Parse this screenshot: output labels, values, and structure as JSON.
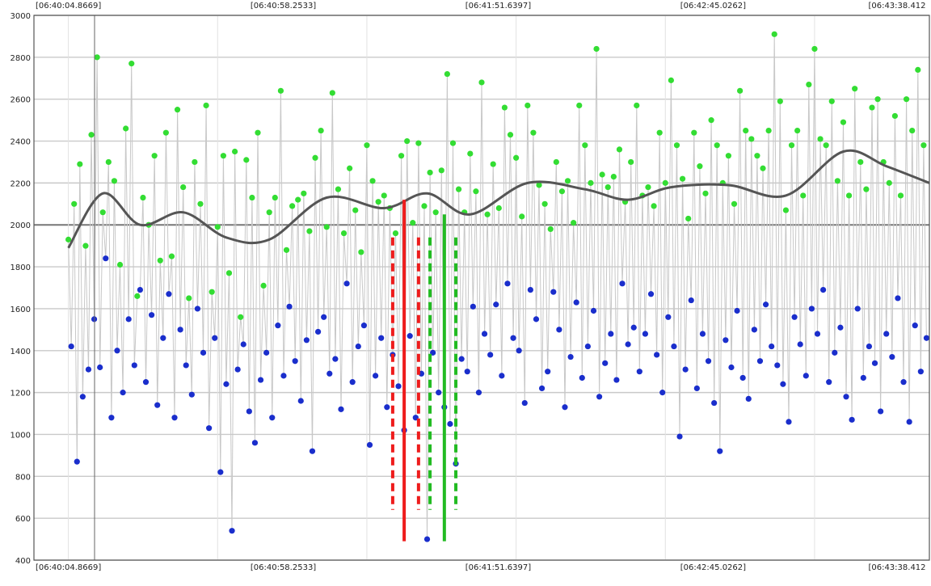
{
  "chart_data": {
    "type": "scatter",
    "ylim": [
      400,
      3000
    ],
    "yticks": [
      400,
      600,
      800,
      1000,
      1200,
      1400,
      1600,
      1800,
      2000,
      2200,
      2400,
      2600,
      2800,
      3000
    ],
    "time_labels": [
      "[06:40:04.8669]",
      "[06:40:58.2533]",
      "[06:41:51.6397]",
      "[06:42:45.0262]",
      "[06:43:38.412"
    ],
    "time_labels_bottom": [
      "[06:40:04.8669]",
      "[06:40:58.2533]",
      "[06:41:51.6397]",
      "[06:42:45.0262]",
      "[06:43:38.412"
    ],
    "xlim": [
      -12,
      300
    ],
    "grid": true,
    "reference_line_y": 2000,
    "series": [],
    "trend_line": {
      "x": [
        0,
        12,
        25,
        40,
        55,
        70,
        90,
        110,
        125,
        140,
        160,
        180,
        195,
        210,
        230,
        250,
        270,
        285,
        300
      ],
      "y": [
        1890,
        2150,
        2000,
        2060,
        1940,
        1930,
        2130,
        2080,
        2150,
        2050,
        2200,
        2170,
        2120,
        2180,
        2190,
        2140,
        2350,
        2280,
        2200
      ]
    },
    "markers": [
      {
        "x": 117,
        "color": "#ee1c1c",
        "style": "solid",
        "y": [
          490,
          2120
        ]
      },
      {
        "x": 113,
        "color": "#ee1c1c",
        "style": "dashed",
        "y": [
          640,
          1940
        ]
      },
      {
        "x": 122,
        "color": "#ee1c1c",
        "style": "dashed",
        "y": [
          640,
          1940
        ]
      },
      {
        "x": 126,
        "color": "#22bb22",
        "style": "dashed",
        "y": [
          640,
          1940
        ]
      },
      {
        "x": 131,
        "color": "#22bb22",
        "style": "solid",
        "y": [
          490,
          2050
        ]
      },
      {
        "x": 135,
        "color": "#22bb22",
        "style": "dashed",
        "y": [
          640,
          1940
        ]
      }
    ],
    "series_colors": {
      "green": "#33dd33",
      "blue": "#1a2ecc",
      "connector": "#c8c8c8",
      "trend": "#555555"
    },
    "green_series": {
      "x": [
        0,
        2,
        4,
        6,
        8,
        10,
        12,
        14,
        16,
        18,
        20,
        22,
        24,
        26,
        28,
        30,
        32,
        34,
        36,
        38,
        40,
        42,
        44,
        46,
        48,
        50,
        52,
        54,
        56,
        58,
        60,
        62,
        64,
        66,
        68,
        70,
        72,
        74,
        76,
        78,
        80,
        82,
        84,
        86,
        88,
        90,
        92,
        94,
        96,
        98,
        100,
        102,
        104,
        106,
        108,
        110,
        112,
        114,
        116,
        118,
        120,
        122,
        124,
        126,
        128,
        130,
        132,
        134,
        136,
        138,
        140,
        142,
        144,
        146,
        148,
        150,
        152,
        154,
        156,
        158,
        160,
        162,
        164,
        166,
        168,
        170,
        172,
        174,
        176,
        178,
        180,
        182,
        184,
        186,
        188,
        190,
        192,
        194,
        196,
        198,
        200,
        202,
        204,
        206,
        208,
        210,
        212,
        214,
        216,
        218,
        220,
        222,
        224,
        226,
        228,
        230,
        232,
        234,
        236,
        238,
        240,
        242,
        244,
        246,
        248,
        250,
        252,
        254,
        256,
        258,
        260,
        262,
        264,
        266,
        268,
        270,
        272,
        274,
        276,
        278,
        280,
        282,
        284,
        286,
        288,
        290,
        292,
        294,
        296,
        298
      ],
      "y": [
        1930,
        2100,
        2290,
        1900,
        2430,
        2800,
        2060,
        2300,
        2210,
        1810,
        2460,
        2770,
        1660,
        2130,
        2000,
        2330,
        1830,
        2440,
        1850,
        2550,
        2180,
        1650,
        2300,
        2100,
        2570,
        1680,
        1990,
        2330,
        1770,
        2350,
        1560,
        2310,
        2130,
        2440,
        1710,
        2060,
        2130,
        2640,
        1880,
        2090,
        2120,
        2150,
        1970,
        2320,
        2450,
        1990,
        2630,
        2170,
        1960,
        2270,
        2070,
        1870,
        2380,
        2210,
        2110,
        2140,
        2080,
        1960,
        2330,
        2400,
        2010,
        2390,
        2090,
        2250,
        2060,
        2260,
        2720,
        2390,
        2170,
        2060,
        2340,
        2160,
        2680,
        2050,
        2290,
        2080,
        2560,
        2430,
        2320,
        2040,
        2570,
        2440,
        2190,
        2100,
        1980,
        2300,
        2160,
        2210,
        2010,
        2570,
        2380,
        2200,
        2840,
        2240,
        2180,
        2230,
        2360,
        2110,
        2300,
        2570,
        2140,
        2180,
        2090,
        2440,
        2200,
        2690,
        2380,
        2220,
        2030,
        2440,
        2280,
        2150,
        2500,
        2380,
        2200,
        2330,
        2100,
        2640,
        2450,
        2410,
        2330,
        2270,
        2450,
        2910,
        2590,
        2070,
        2380,
        2450,
        2140,
        2670,
        2840,
        2410,
        2380,
        2590,
        2210,
        2490,
        2140,
        2650,
        2300,
        2170,
        2560,
        2600,
        2300,
        2200,
        2520,
        2140,
        2600,
        2450,
        2740,
        2380
      ]
    },
    "blue_series": {
      "x": [
        0,
        2,
        4,
        6,
        8,
        10,
        12,
        14,
        16,
        18,
        20,
        22,
        24,
        26,
        28,
        30,
        32,
        34,
        36,
        38,
        40,
        42,
        44,
        46,
        48,
        50,
        52,
        54,
        56,
        58,
        60,
        62,
        64,
        66,
        68,
        70,
        72,
        74,
        76,
        78,
        80,
        82,
        84,
        86,
        88,
        90,
        92,
        94,
        96,
        98,
        100,
        102,
        104,
        106,
        108,
        110,
        112,
        114,
        116,
        118,
        120,
        122,
        124,
        126,
        128,
        130,
        132,
        134,
        136,
        138,
        140,
        142,
        144,
        146,
        148,
        150,
        152,
        154,
        156,
        158,
        160,
        162,
        164,
        166,
        168,
        170,
        172,
        174,
        176,
        178,
        180,
        182,
        184,
        186,
        188,
        190,
        192,
        194,
        196,
        198,
        200,
        202,
        204,
        206,
        208,
        210,
        212,
        214,
        216,
        218,
        220,
        222,
        224,
        226,
        228,
        230,
        232,
        234,
        236,
        238,
        240,
        242,
        244,
        246,
        248,
        250,
        252,
        254,
        256,
        258,
        260,
        262,
        264,
        266,
        268,
        270,
        272,
        274,
        276,
        278,
        280,
        282,
        284,
        286,
        288,
        290,
        292,
        294,
        296,
        298
      ],
      "y": [
        1420,
        870,
        1180,
        1310,
        1550,
        1320,
        1840,
        1080,
        1400,
        1200,
        1550,
        1330,
        1690,
        1250,
        1570,
        1140,
        1460,
        1670,
        1080,
        1500,
        1330,
        1190,
        1600,
        1390,
        1030,
        1460,
        820,
        1240,
        540,
        1310,
        1430,
        1110,
        960,
        1260,
        1390,
        1080,
        1520,
        1280,
        1610,
        1350,
        1160,
        1450,
        920,
        1490,
        1560,
        1290,
        1360,
        1120,
        1720,
        1250,
        1420,
        1520,
        950,
        1280,
        1460,
        1130,
        1380,
        1230,
        1020,
        1470,
        1080,
        1290,
        500,
        1390,
        1200,
        1130,
        1050,
        860,
        1360,
        1300,
        1610,
        1200,
        1480,
        1380,
        1620,
        1280,
        1720,
        1460,
        1400,
        1150,
        1690,
        1550,
        1220,
        1300,
        1680,
        1500,
        1130,
        1370,
        1630,
        1270,
        1420,
        1590,
        1180,
        1340,
        1480,
        1260,
        1720,
        1430,
        1510,
        1300,
        1480,
        1670,
        1380,
        1200,
        1560,
        1420,
        990,
        1310,
        1640,
        1220,
        1480,
        1350,
        1150,
        920,
        1450,
        1320,
        1590,
        1270,
        1170,
        1500,
        1350,
        1620,
        1420,
        1330,
        1240,
        1060,
        1560,
        1430,
        1280,
        1600,
        1480,
        1690,
        1250,
        1390,
        1510,
        1180,
        1070,
        1600,
        1270,
        1420,
        1340,
        1110,
        1480,
        1370,
        1650,
        1250,
        1060,
        1520,
        1300,
        1460
      ]
    }
  }
}
